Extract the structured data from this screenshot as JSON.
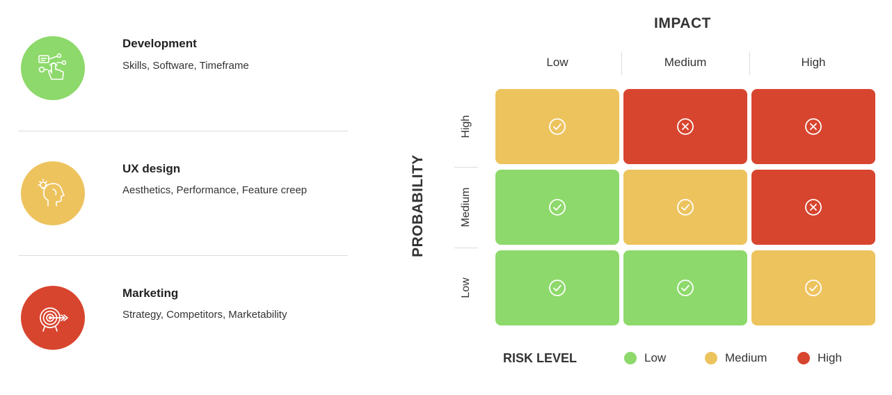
{
  "left_items": [
    {
      "title": "Development",
      "desc": "Skills, Software, Timeframe",
      "color": "#8dd96b",
      "icon": "hand-touch-icon"
    },
    {
      "title": "UX design",
      "desc": "Aesthetics, Performance, Feature creep",
      "color": "#edc35e",
      "icon": "head-idea-icon"
    },
    {
      "title": "Marketing",
      "desc": "Strategy, Competitors, Marketability",
      "color": "#d8452f",
      "icon": "target-icon"
    }
  ],
  "matrix": {
    "impact_title": "IMPACT",
    "probability_title": "PROBABILITY",
    "impact_levels": [
      "Low",
      "Medium",
      "High"
    ],
    "probability_levels": [
      "High",
      "Medium",
      "Low"
    ],
    "cells": [
      [
        {
          "risk": "Medium",
          "icon": "check-circle-icon"
        },
        {
          "risk": "High",
          "icon": "x-circle-icon"
        },
        {
          "risk": "High",
          "icon": "x-circle-icon"
        }
      ],
      [
        {
          "risk": "Low",
          "icon": "check-circle-icon"
        },
        {
          "risk": "Medium",
          "icon": "check-circle-icon"
        },
        {
          "risk": "High",
          "icon": "x-circle-icon"
        }
      ],
      [
        {
          "risk": "Low",
          "icon": "check-circle-icon"
        },
        {
          "risk": "Low",
          "icon": "check-circle-icon"
        },
        {
          "risk": "Medium",
          "icon": "check-circle-icon"
        }
      ]
    ]
  },
  "legend": {
    "title": "RISK LEVEL",
    "items": [
      {
        "label": "Low",
        "color": "#8dd96b"
      },
      {
        "label": "Medium",
        "color": "#edc35e"
      },
      {
        "label": "High",
        "color": "#d8452f"
      }
    ]
  }
}
